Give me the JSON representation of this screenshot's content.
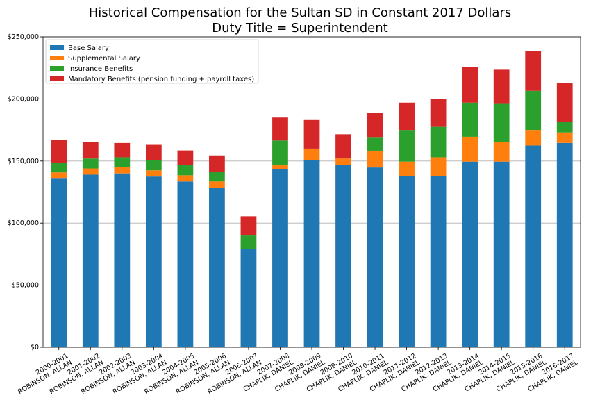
{
  "chart_data": {
    "type": "bar",
    "stacked": true,
    "title": "Historical Compensation for the Sultan SD in Constant 2017 Dollars",
    "subtitle": "Duty Title = Superintendent",
    "xlabel": "",
    "ylabel": "",
    "ylim": [
      0,
      250000
    ],
    "yticks": [
      0,
      50000,
      100000,
      150000,
      200000,
      250000
    ],
    "ytick_labels": [
      "$0",
      "$50,000",
      "$100,000",
      "$150,000",
      "$200,000",
      "$250,000"
    ],
    "grid": "horizontal",
    "legend_position": "top-left",
    "categories": [
      [
        "2000-2001",
        "ROBINSON, ALLAN"
      ],
      [
        "2001-2002",
        "ROBINSON, ALLAN"
      ],
      [
        "2002-2003",
        "ROBINSON, ALLAN"
      ],
      [
        "2003-2004",
        "ROBINSON, ALLAN"
      ],
      [
        "2004-2005",
        "ROBINSON, ALLAN"
      ],
      [
        "2005-2006",
        "ROBINSON, ALLAN"
      ],
      [
        "2006-2007",
        "ROBINSON, ALLAN"
      ],
      [
        "2007-2008",
        "CHAPLIK, DANIEL"
      ],
      [
        "2008-2009",
        "CHAPLIK, DANIEL"
      ],
      [
        "2009-2010",
        "CHAPLIK, DANIEL"
      ],
      [
        "2010-2011",
        "CHAPLIK, DANIEL"
      ],
      [
        "2011-2012",
        "CHAPLIK, DANIEL"
      ],
      [
        "2012-2013",
        "CHAPLIK, DANIEL"
      ],
      [
        "2013-2014",
        "CHAPLIK, DANIEL"
      ],
      [
        "2014-2015",
        "CHAPLIK, DANIEL"
      ],
      [
        "2015-2016",
        "CHAPLIK, DANIEL"
      ],
      [
        "2016-2017",
        "CHAPLIK, DANIEL"
      ]
    ],
    "series": [
      {
        "name": "Base Salary",
        "color": "#1f77b4",
        "values": [
          135800,
          139000,
          140000,
          137500,
          133500,
          128500,
          79000,
          143500,
          150500,
          147000,
          144800,
          138000,
          138000,
          149500,
          149500,
          162500,
          164500
        ]
      },
      {
        "name": "Supplemental Salary",
        "color": "#ff7f0e",
        "values": [
          5000,
          5000,
          5000,
          5000,
          5000,
          5000,
          0,
          3000,
          9500,
          5000,
          13500,
          11500,
          15000,
          20000,
          16000,
          12500,
          8500
        ]
      },
      {
        "name": "Insurance Benefits",
        "color": "#2ca02c",
        "values": [
          7500,
          8000,
          8000,
          8500,
          8500,
          8000,
          11000,
          20000,
          0,
          0,
          11000,
          25500,
          24500,
          27500,
          30500,
          31500,
          8500
        ]
      },
      {
        "name": "Mandatory Benefits (pension funding + payroll taxes)",
        "color": "#d62728",
        "values": [
          18500,
          13000,
          11500,
          12000,
          11500,
          13000,
          15500,
          18500,
          23000,
          19500,
          19500,
          22000,
          22500,
          28500,
          27500,
          32000,
          31500
        ]
      }
    ]
  }
}
